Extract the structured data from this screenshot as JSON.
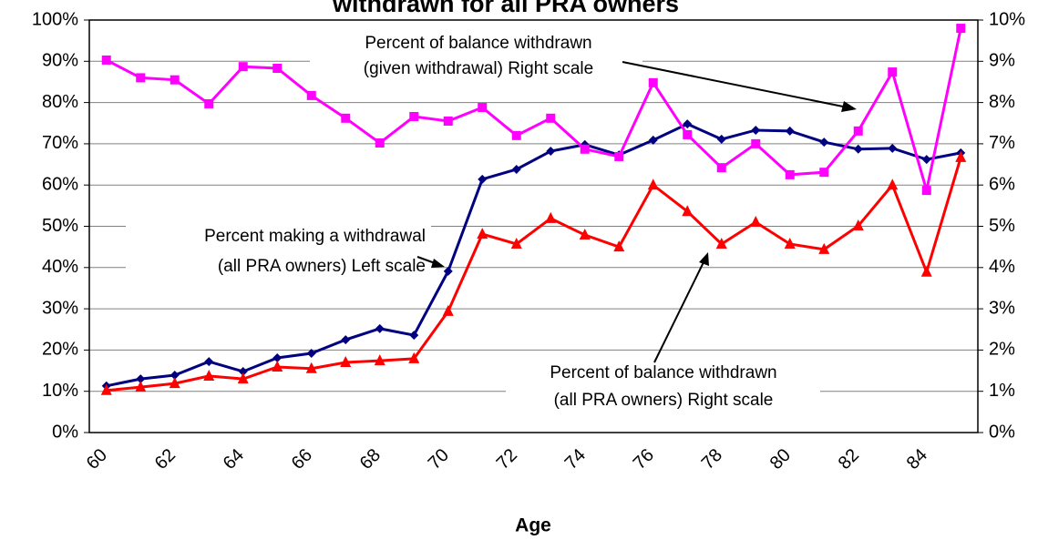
{
  "chart_data": {
    "type": "line",
    "title": "withdrawn for all PRA owners",
    "x_label": "Age",
    "categories": [
      "60",
      null,
      "62",
      null,
      "64",
      null,
      "66",
      null,
      "68",
      null,
      "70",
      null,
      "72",
      null,
      "74",
      null,
      "76",
      null,
      "78",
      null,
      "80",
      null,
      "82",
      null,
      "84",
      null
    ],
    "series": [
      {
        "name": "Percent making a withdrawal (all PRA owners)",
        "color": "#000080",
        "marker": "diamond",
        "axis": "y",
        "values": [
          11.3,
          13.0,
          13.9,
          17.2,
          14.8,
          18.1,
          19.2,
          22.5,
          25.2,
          23.6,
          39.1,
          61.4,
          63.8,
          68.2,
          69.8,
          67.3,
          70.9,
          74.8,
          71.1,
          73.3,
          73.1,
          70.4,
          68.7,
          68.9,
          66.2,
          67.8
        ]
      },
      {
        "name": "Percent of balance withdrawn (given withdrawal)",
        "color": "#ff00ff",
        "marker": "square",
        "axis": "y2",
        "values": [
          9.03,
          8.6,
          8.55,
          7.97,
          8.87,
          8.83,
          8.17,
          7.62,
          7.02,
          7.66,
          7.55,
          7.88,
          7.2,
          7.62,
          6.87,
          6.69,
          8.48,
          7.22,
          6.42,
          7.0,
          6.25,
          6.31,
          7.31,
          8.74,
          5.87,
          9.8
        ]
      },
      {
        "name": "Percent of balance withdrawn (all PRA owners)",
        "color": "#ff0000",
        "marker": "triangle",
        "axis": "y2",
        "values": [
          1.02,
          1.1,
          1.19,
          1.37,
          1.3,
          1.59,
          1.55,
          1.7,
          1.74,
          1.79,
          2.94,
          4.81,
          4.57,
          5.19,
          4.79,
          4.5,
          6.0,
          5.36,
          4.57,
          5.1,
          4.57,
          4.44,
          5.01,
          6.0,
          3.89,
          6.67
        ]
      }
    ],
    "ylim": [
      0,
      100
    ],
    "yticks": [
      {
        "value": 0,
        "label": "0%"
      },
      {
        "value": 10,
        "label": "10%"
      },
      {
        "value": 20,
        "label": "20%"
      },
      {
        "value": 30,
        "label": "30%"
      },
      {
        "value": 40,
        "label": "40%"
      },
      {
        "value": 50,
        "label": "50%"
      },
      {
        "value": 60,
        "label": "60%"
      },
      {
        "value": 70,
        "label": "70%"
      },
      {
        "value": 80,
        "label": "80%"
      },
      {
        "value": 90,
        "label": "90%"
      },
      {
        "value": 100,
        "label": "100%"
      }
    ],
    "y2lim": [
      0,
      10
    ],
    "y2ticks": [
      {
        "value": 0,
        "label": "0%"
      },
      {
        "value": 1,
        "label": "1%"
      },
      {
        "value": 2,
        "label": "2%"
      },
      {
        "value": 3,
        "label": "3%"
      },
      {
        "value": 4,
        "label": "4%"
      },
      {
        "value": 5,
        "label": "5%"
      },
      {
        "value": 6,
        "label": "6%"
      },
      {
        "value": 7,
        "label": "7%"
      },
      {
        "value": 8,
        "label": "8%"
      },
      {
        "value": 9,
        "label": "9%"
      },
      {
        "value": 10,
        "label": "10%"
      }
    ],
    "grid": true,
    "annotations": [
      [
        "Percent of balance withdrawn",
        "(given withdrawal) Right scale"
      ],
      [
        "Percent making a withdrawal",
        "(all PRA owners) Left scale"
      ],
      [
        "Percent of balance withdrawn",
        "(all PRA owners) Right scale"
      ]
    ]
  }
}
